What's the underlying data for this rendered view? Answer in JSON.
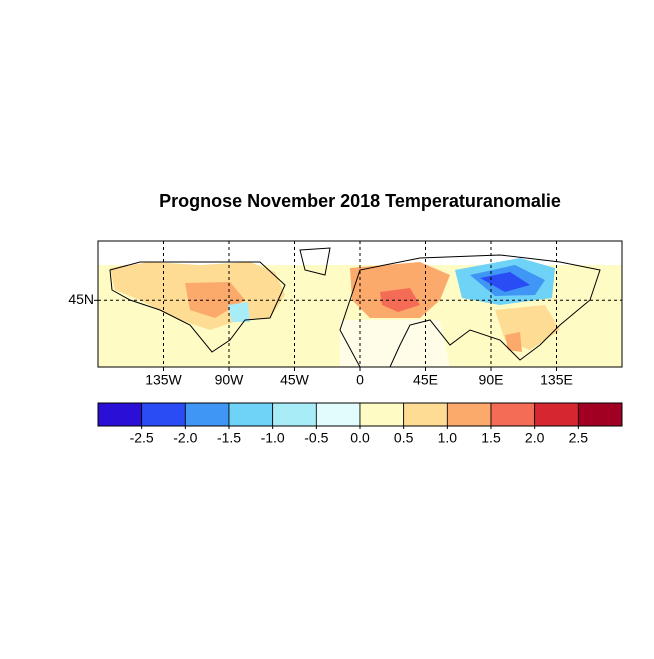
{
  "chart_data": {
    "type": "map",
    "title": "Prognose November 2018 Temperaturanomalie",
    "xlim": [
      -180,
      180
    ],
    "ylim": [
      0,
      85
    ],
    "xticks": [
      {
        "value": -135,
        "label": "135W"
      },
      {
        "value": -90,
        "label": "90W"
      },
      {
        "value": -45,
        "label": "45W"
      },
      0,
      {
        "value": 45,
        "label": "45E"
      },
      {
        "value": 90,
        "label": "90E"
      },
      {
        "value": 135,
        "label": "135E"
      }
    ],
    "yticks": [
      {
        "value": 45,
        "label": "45N"
      }
    ],
    "grid": true,
    "colorbar": {
      "clim": [
        -3,
        3
      ],
      "colors": [
        "#2a0fd6",
        "#2a4cf5",
        "#3f96f5",
        "#6fd2f7",
        "#a8ecf8",
        "#e2fcfd",
        "#fffbc4",
        "#fedc94",
        "#fca96c",
        "#f56c56",
        "#d62731",
        "#a10023"
      ],
      "ticks": [
        -2.5,
        {
          "value": -2,
          "label": "-2.0"
        },
        -1.5,
        {
          "value": -1,
          "label": "-1.0"
        },
        -0.5,
        {
          "value": 0,
          "label": "0.0"
        },
        0.5,
        {
          "value": 1,
          "label": "1.0"
        },
        1.5,
        {
          "value": 2,
          "label": "2.0"
        },
        2.5
      ]
    }
  }
}
